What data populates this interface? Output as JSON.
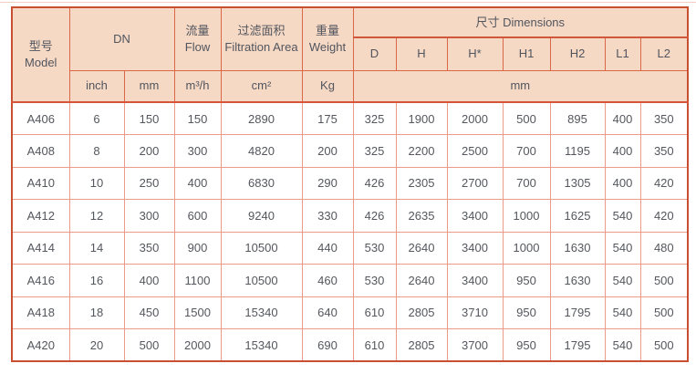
{
  "table": {
    "header": {
      "model": "型号\nModel",
      "dn": "DN",
      "flow": "流量\nFlow",
      "filtration_area": "过滤面积\nFiltration Area",
      "weight": "重量\nWeight",
      "dimensions": "尺寸 Dimensions",
      "dim_cols": [
        "D",
        "H",
        "H*",
        "H1",
        "H2",
        "L1",
        "L2"
      ],
      "unit_inch": "inch",
      "unit_mm": "mm",
      "unit_flow": "m³/h",
      "unit_area": "cm²",
      "unit_weight": "Kg",
      "unit_dim": "mm"
    },
    "rows": [
      [
        "A406",
        "6",
        "150",
        "150",
        "2890",
        "175",
        "325",
        "1900",
        "2000",
        "500",
        "895",
        "400",
        "350"
      ],
      [
        "A408",
        "8",
        "200",
        "300",
        "4820",
        "200",
        "325",
        "2200",
        "2500",
        "700",
        "1195",
        "400",
        "350"
      ],
      [
        "A410",
        "10",
        "250",
        "400",
        "6830",
        "290",
        "426",
        "2305",
        "2700",
        "700",
        "1305",
        "400",
        "420"
      ],
      [
        "A412",
        "12",
        "300",
        "600",
        "9240",
        "330",
        "426",
        "2635",
        "3400",
        "1000",
        "1625",
        "540",
        "420"
      ],
      [
        "A414",
        "14",
        "350",
        "900",
        "10500",
        "440",
        "530",
        "2640",
        "3400",
        "1000",
        "1630",
        "540",
        "480"
      ],
      [
        "A416",
        "16",
        "400",
        "1100",
        "10500",
        "460",
        "530",
        "2640",
        "3400",
        "950",
        "1630",
        "540",
        "500"
      ],
      [
        "A418",
        "18",
        "450",
        "1500",
        "15340",
        "640",
        "610",
        "2805",
        "3710",
        "950",
        "1795",
        "540",
        "500"
      ],
      [
        "A420",
        "20",
        "500",
        "2000",
        "15340",
        "690",
        "610",
        "2805",
        "3700",
        "950",
        "1795",
        "540",
        "500"
      ]
    ]
  },
  "colors": {
    "header_bg": "#f6d9c5",
    "outer_border": "#c94f31",
    "header_border": "#da6748",
    "grid_border": "#ec9a89",
    "strong_line": "#d6553a",
    "text": "#53565c"
  }
}
